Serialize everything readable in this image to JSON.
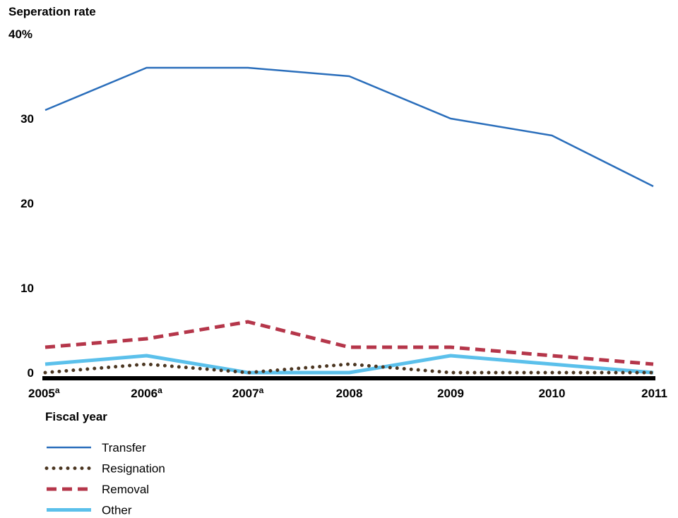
{
  "chart_data": {
    "type": "line",
    "ylabel": "Seperation rate",
    "xlabel": "Fiscal year",
    "ylim": [
      0,
      40
    ],
    "y_ticks": [
      "0",
      "10",
      "20",
      "30",
      "40%"
    ],
    "categories": [
      "2005",
      "2006",
      "2007",
      "2008",
      "2009",
      "2010",
      "2011"
    ],
    "category_superscripts": [
      "a",
      "a",
      "a",
      "",
      "",
      "",
      ""
    ],
    "legend_position": "bottom-left",
    "grid": false,
    "series": [
      {
        "name": "Transfer",
        "values": [
          31,
          36,
          36,
          35,
          30,
          28,
          22
        ],
        "color": "#2A6EBB",
        "style": "solid"
      },
      {
        "name": "Resignation",
        "values": [
          0,
          1,
          0,
          1,
          0,
          0,
          0
        ],
        "color": "#4B3621",
        "style": "dotted"
      },
      {
        "name": "Removal",
        "values": [
          3,
          4,
          6,
          3,
          3,
          2,
          1
        ],
        "color": "#B5364A",
        "style": "dashed"
      },
      {
        "name": "Other",
        "values": [
          1,
          2,
          0,
          0,
          2,
          1,
          0
        ],
        "color": "#5BC0EB",
        "style": "thick"
      }
    ]
  }
}
